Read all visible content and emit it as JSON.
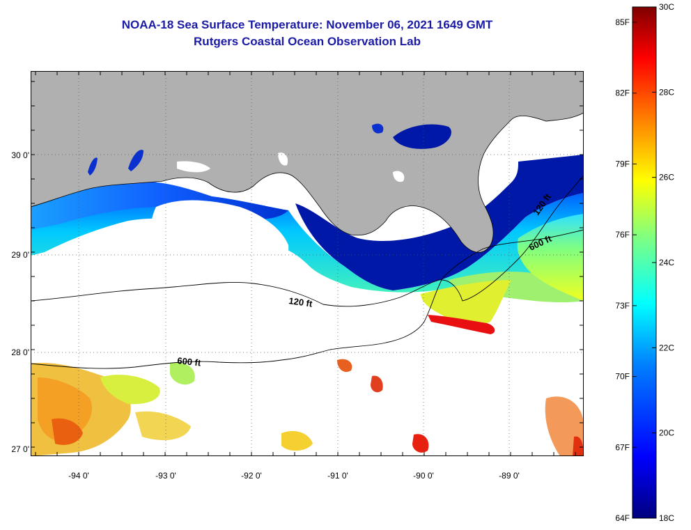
{
  "header": {
    "title": "NOAA-18 Sea Surface Temperature:  November 06, 2021 1649 GMT",
    "subtitle": "Rutgers Coastal Ocean Observation Lab"
  },
  "map": {
    "lat_labels": [
      "30 0'",
      "29 0'",
      "28 0'",
      "27 0'"
    ],
    "lon_labels": [
      "-94 0'",
      "-93 0'",
      "-92 0'",
      "-91 0'",
      "-90 0'",
      "-89 0'"
    ],
    "contours": [
      {
        "label": "120 ft"
      },
      {
        "label": "600 ft"
      },
      {
        "label": "120 ft"
      },
      {
        "label": "600 ft"
      }
    ]
  },
  "colorbar": {
    "fahrenheit_labels": [
      "85F",
      "82F",
      "79F",
      "76F",
      "73F",
      "70F",
      "67F",
      "64F"
    ],
    "celsius_labels": [
      "30C",
      "28C",
      "26C",
      "24C",
      "22C",
      "20C",
      "18C"
    ],
    "colors": [
      "#00007f",
      "#0000ff",
      "#0080ff",
      "#00ffff",
      "#80ff80",
      "#ffff00",
      "#ff8000",
      "#ff0000",
      "#7f0000"
    ]
  }
}
